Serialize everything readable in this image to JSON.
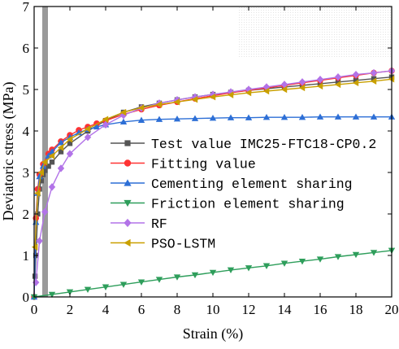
{
  "chart_data": {
    "type": "line",
    "xlabel": "Strain (%)",
    "ylabel": "Deviatoric stress (MPa)",
    "xlim": [
      0,
      20
    ],
    "ylim": [
      0,
      7
    ],
    "xticks": [
      0,
      2,
      4,
      6,
      8,
      10,
      12,
      14,
      16,
      18,
      20
    ],
    "yticks": [
      0,
      1,
      2,
      3,
      4,
      5,
      6,
      7
    ],
    "grid": false,
    "legend_position": "center-right",
    "series": [
      {
        "name": "Test value IMC25-FTC18-CP0.2",
        "color": "#555555",
        "marker": "square",
        "x": [
          0.05,
          0.1,
          0.2,
          0.3,
          0.4,
          0.5,
          0.6,
          0.8,
          1.0,
          1.5,
          2.0,
          3.0,
          4.0,
          5.0,
          6.0,
          7.0,
          8.0,
          9.0,
          10.0,
          11.0,
          12.0,
          13.0,
          14.0,
          15.0,
          16.0,
          17.0,
          18.0,
          19.0,
          20.0
        ],
        "y": [
          0.5,
          1.0,
          2.0,
          2.6,
          2.8,
          2.95,
          3.05,
          3.15,
          3.25,
          3.5,
          3.7,
          4.0,
          4.25,
          4.45,
          4.58,
          4.67,
          4.75,
          4.82,
          4.88,
          4.93,
          4.98,
          5.02,
          5.06,
          5.1,
          5.14,
          5.18,
          5.22,
          5.26,
          5.3
        ]
      },
      {
        "name": "Fitting value",
        "color": "#ff3333",
        "marker": "circle",
        "x": [
          0.0,
          0.1,
          0.2,
          0.3,
          0.5,
          0.8,
          1.0,
          1.5,
          2.0,
          2.5,
          3.0,
          3.5,
          4.0,
          5.0,
          6.0,
          7.0,
          8.0,
          9.0,
          10.0,
          11.0,
          12.0,
          13.0,
          14.0,
          15.0,
          16.0,
          17.0,
          18.0,
          19.0,
          20.0
        ],
        "y": [
          0.0,
          1.9,
          2.6,
          2.95,
          3.2,
          3.45,
          3.55,
          3.75,
          3.9,
          4.02,
          4.1,
          4.18,
          4.25,
          4.4,
          4.52,
          4.62,
          4.7,
          4.78,
          4.85,
          4.92,
          4.98,
          5.04,
          5.1,
          5.16,
          5.22,
          5.28,
          5.34,
          5.4,
          5.45
        ]
      },
      {
        "name": "Cementing element sharing",
        "color": "#2d6fd6",
        "marker": "triangle-up",
        "x": [
          0.0,
          0.1,
          0.2,
          0.3,
          0.5,
          0.8,
          1.0,
          1.5,
          2.0,
          2.5,
          3.0,
          3.5,
          4.0,
          5.0,
          6.0,
          7.0,
          8.0,
          9.0,
          10.0,
          11.0,
          12.0,
          13.0,
          14.0,
          15.0,
          16.0,
          17.0,
          18.0,
          19.0,
          20.0
        ],
        "y": [
          0.0,
          1.8,
          2.5,
          2.9,
          3.15,
          3.4,
          3.5,
          3.72,
          3.85,
          3.96,
          4.04,
          4.1,
          4.15,
          4.22,
          4.26,
          4.28,
          4.29,
          4.3,
          4.31,
          4.32,
          4.32,
          4.33,
          4.33,
          4.33,
          4.34,
          4.34,
          4.34,
          4.34,
          4.34
        ]
      },
      {
        "name": "Friction element sharing",
        "color": "#2e9e5b",
        "marker": "triangle-down",
        "x": [
          0,
          1,
          2,
          3,
          4,
          5,
          6,
          7,
          8,
          9,
          10,
          11,
          12,
          13,
          14,
          15,
          16,
          17,
          18,
          19,
          20
        ],
        "y": [
          0.0,
          0.06,
          0.12,
          0.18,
          0.24,
          0.3,
          0.36,
          0.42,
          0.48,
          0.53,
          0.59,
          0.65,
          0.7,
          0.75,
          0.81,
          0.86,
          0.91,
          0.97,
          1.02,
          1.07,
          1.12
        ]
      },
      {
        "name": "RF",
        "color": "#b273e8",
        "marker": "diamond",
        "x": [
          0.1,
          0.3,
          0.6,
          1.0,
          1.5,
          2.0,
          3.0,
          4.0,
          5.0,
          6.0,
          7.0,
          8.0,
          9.0,
          10.0,
          11.0,
          12.0,
          13.0,
          14.0,
          15.0,
          16.0,
          17.0,
          18.0,
          19.0,
          20.0
        ],
        "y": [
          0.35,
          1.35,
          2.05,
          2.65,
          3.1,
          3.45,
          3.85,
          4.15,
          4.38,
          4.55,
          4.67,
          4.75,
          4.82,
          4.88,
          4.94,
          5.0,
          5.06,
          5.12,
          5.18,
          5.24,
          5.3,
          5.36,
          5.4,
          5.45
        ]
      },
      {
        "name": "PSO-LSTM",
        "color": "#c9a000",
        "marker": "triangle-left",
        "x": [
          0.05,
          0.2,
          0.4,
          0.6,
          1.0,
          1.5,
          2.0,
          3.0,
          4.0,
          5.0,
          6.0,
          7.0,
          8.0,
          9.0,
          10.0,
          11.0,
          12.0,
          13.0,
          14.0,
          15.0,
          16.0,
          17.0,
          18.0,
          19.0,
          20.0
        ],
        "y": [
          1.2,
          2.5,
          3.0,
          3.25,
          3.4,
          3.6,
          3.8,
          4.05,
          4.28,
          4.45,
          4.56,
          4.64,
          4.7,
          4.76,
          4.82,
          4.87,
          4.92,
          4.96,
          5.0,
          5.04,
          5.08,
          5.12,
          5.16,
          5.2,
          5.25
        ]
      }
    ]
  }
}
